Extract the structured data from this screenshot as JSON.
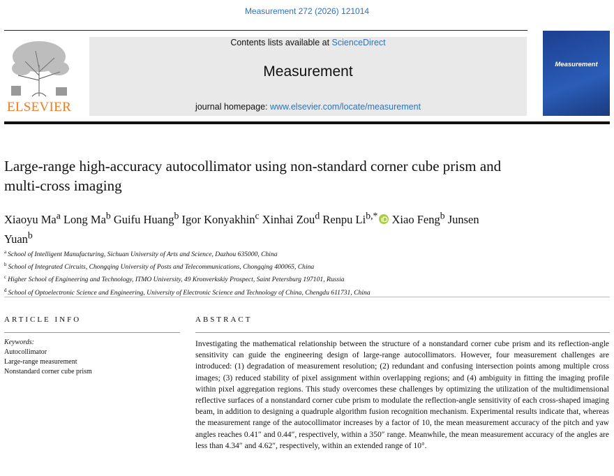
{
  "header": {
    "citation": "Measurement 272 (2026) 121014",
    "contents_prefix": "Contents lists available at",
    "contents_link": "ScienceDirect",
    "journal": "Measurement",
    "homepage_prefix": "journal homepage:",
    "homepage_link": "www.elsevier.com/locate/measurement",
    "publisher": "ELSEVIER",
    "cover_title": "Measurement"
  },
  "title": "Large-range high-accuracy autocollimator using non-standard corner cube prism and multi-cross imaging",
  "authors": [
    {
      "name": "Xiaoyu Ma",
      "aff": "a"
    },
    {
      "name": "Long Ma",
      "aff": "b"
    },
    {
      "name": "Guifu Huang",
      "aff": "b"
    },
    {
      "name": "Igor Konyakhin",
      "aff": "c"
    },
    {
      "name": "Xinhai Zou",
      "aff": "d"
    },
    {
      "name": "Renpu Li",
      "aff": "b,*"
    },
    {
      "name": "Xiao Feng",
      "aff": "b"
    },
    {
      "name": "Junsen Yuan",
      "aff": "b"
    }
  ],
  "affiliations": [
    {
      "mark": "a",
      "text": "School of Intelligent Manufacturing, Sichuan University of Arts and Science, Dazhou 635000, China"
    },
    {
      "mark": "b",
      "text": "School of Integrated Circuits, Chongqing University of Posts and Telecommunications, Chongqing 400065, China"
    },
    {
      "mark": "c",
      "text": "Higher School of Engineering and Technology, ITMO University, 49 Kronverkskiy Prospect, Saint Petersburg 197101, Russia"
    },
    {
      "mark": "d",
      "text": "School of Optoelectronic Science and Engineering, University of Electronic Science and Technology of China, Chengdu 611731, China"
    }
  ],
  "article_info": {
    "heading": "ARTICLE INFO",
    "keywords_label": "Keywords:",
    "keywords": [
      "Autocollimator",
      "Large-range measurement",
      "Nonstandard corner cube prism"
    ]
  },
  "abstract": {
    "heading": "ABSTRACT",
    "text": "Investigating the mathematical relationship between the structure of a nonstandard corner cube prism and its reflection-angle sensitivity can guide the engineering design of large-range autocollimators. However, four measurement challenges are introduced: (1) degradation of measurement resolution; (2) redundant and confusing intersection points among multiple cross images; (3) reduced stability of pixel assignment within overlapping regions; and (4) ambiguity in fitting the imaging profile within pixel aggregation regions. This study overcomes these challenges by optimizing the utilization of the multidimensional reflective surfaces of a nonstandard corner cube prism to modulate the reflection-angle sensitivity of each cross-shaped imaging beam, in addition to designing a quadruple algorithm fusion recognition mechanism. Experimental results indicate that, whereas the measurement range of the autocollimator increases by a factor of 10, the mean measurement accuracy of the pitch and yaw angles reaches 0.41″ and 0.44″, respectively, within a 350″ range. Meanwhile, the mean measurement accuracy of the angles are less than 4.34″ and 4.62″, respectively, within an extended range of 10°."
  }
}
